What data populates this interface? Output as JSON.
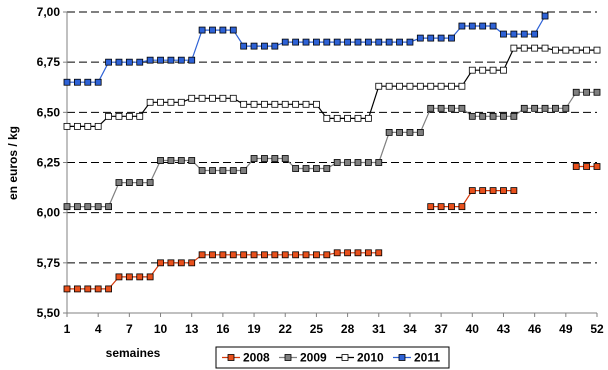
{
  "chart_data": {
    "type": "line",
    "title": "",
    "xlabel": "semaines",
    "ylabel": "en euros / kg",
    "xlim": [
      1,
      52
    ],
    "ylim": [
      5.5,
      7.0
    ],
    "x_ticks": [
      1,
      4,
      7,
      10,
      13,
      16,
      19,
      22,
      25,
      28,
      31,
      34,
      37,
      40,
      43,
      46,
      49,
      52
    ],
    "y_ticks": [
      "5,50",
      "5,75",
      "6,00",
      "6,25",
      "6,50",
      "6,75",
      "7,00"
    ],
    "y_tick_values": [
      5.5,
      5.75,
      6.0,
      6.25,
      6.5,
      6.75,
      7.0
    ],
    "grid": "horizontal dashed",
    "legend_position": "bottom",
    "series": [
      {
        "name": "2008",
        "color": "#e8501c",
        "line_color": "#d63a0c",
        "marker_fill": "#e8501c",
        "segments": [
          {
            "x": [
              1,
              2,
              3,
              4,
              5,
              6,
              7,
              8,
              9,
              10,
              11,
              12,
              13,
              14,
              15,
              16,
              17,
              18,
              19,
              20,
              21,
              22,
              23,
              24,
              25,
              26,
              27,
              28,
              29,
              30,
              31
            ],
            "y": [
              5.62,
              5.62,
              5.62,
              5.62,
              5.62,
              5.68,
              5.68,
              5.68,
              5.68,
              5.75,
              5.75,
              5.75,
              5.75,
              5.79,
              5.79,
              5.79,
              5.79,
              5.79,
              5.79,
              5.79,
              5.79,
              5.79,
              5.79,
              5.79,
              5.79,
              5.79,
              5.8,
              5.8,
              5.8,
              5.8,
              5.8
            ]
          },
          {
            "x": [
              36,
              37,
              38,
              39,
              40,
              41,
              42,
              43,
              44
            ],
            "y": [
              6.03,
              6.03,
              6.03,
              6.03,
              6.11,
              6.11,
              6.11,
              6.11,
              6.11
            ]
          },
          {
            "x": [
              50,
              51,
              52
            ],
            "y": [
              6.23,
              6.23,
              6.23
            ]
          }
        ]
      },
      {
        "name": "2009",
        "color": "#808080",
        "line_color": "#808080",
        "marker_fill": "#808080",
        "segments": [
          {
            "x": [
              1,
              2,
              3,
              4,
              5,
              6,
              7,
              8,
              9,
              10,
              11,
              12,
              13,
              14,
              15,
              16,
              17,
              18,
              19,
              20,
              21,
              22,
              23,
              24,
              25,
              26,
              27,
              28,
              29,
              30,
              31,
              32,
              33,
              34,
              35,
              36,
              37,
              38,
              39,
              40,
              41,
              42,
              43,
              44,
              45,
              46,
              47,
              48,
              49,
              50,
              51,
              52
            ],
            "y": [
              6.03,
              6.03,
              6.03,
              6.03,
              6.03,
              6.15,
              6.15,
              6.15,
              6.15,
              6.26,
              6.26,
              6.26,
              6.26,
              6.21,
              6.21,
              6.21,
              6.21,
              6.21,
              6.27,
              6.27,
              6.27,
              6.27,
              6.22,
              6.22,
              6.22,
              6.22,
              6.25,
              6.25,
              6.25,
              6.25,
              6.25,
              6.4,
              6.4,
              6.4,
              6.4,
              6.52,
              6.52,
              6.52,
              6.52,
              6.48,
              6.48,
              6.48,
              6.48,
              6.48,
              6.52,
              6.52,
              6.52,
              6.52,
              6.52,
              6.6,
              6.6,
              6.6
            ]
          }
        ]
      },
      {
        "name": "2010",
        "color": "#ffffff",
        "line_color": "#000000",
        "marker_fill": "#ffffff",
        "segments": [
          {
            "x": [
              1,
              2,
              3,
              4,
              5,
              6,
              7,
              8,
              9,
              10,
              11,
              12,
              13,
              14,
              15,
              16,
              17,
              18,
              19,
              20,
              21,
              22,
              23,
              24,
              25,
              26,
              27,
              28,
              29,
              30,
              31,
              32,
              33,
              34,
              35,
              36,
              37,
              38,
              39,
              40,
              41,
              42,
              43,
              44,
              45,
              46,
              47,
              48,
              49,
              50,
              51,
              52
            ],
            "y": [
              6.43,
              6.43,
              6.43,
              6.43,
              6.48,
              6.48,
              6.48,
              6.48,
              6.55,
              6.55,
              6.55,
              6.55,
              6.57,
              6.57,
              6.57,
              6.57,
              6.57,
              6.54,
              6.54,
              6.54,
              6.54,
              6.54,
              6.54,
              6.54,
              6.54,
              6.47,
              6.47,
              6.47,
              6.47,
              6.47,
              6.63,
              6.63,
              6.63,
              6.63,
              6.63,
              6.63,
              6.63,
              6.63,
              6.63,
              6.71,
              6.71,
              6.71,
              6.71,
              6.82,
              6.82,
              6.82,
              6.82,
              6.81,
              6.81,
              6.81,
              6.81,
              6.81
            ]
          }
        ]
      },
      {
        "name": "2011",
        "color": "#2e62d6",
        "line_color": "#2e62d6",
        "marker_fill": "#2e62d6",
        "segments": [
          {
            "x": [
              1,
              2,
              3,
              4,
              5,
              6,
              7,
              8,
              9,
              10,
              11,
              12,
              13,
              14,
              15,
              16,
              17,
              18,
              19,
              20,
              21,
              22,
              23,
              24,
              25,
              26,
              27,
              28,
              29,
              30,
              31,
              32,
              33,
              34,
              35,
              36,
              37,
              38,
              39,
              40,
              41,
              42,
              43,
              44,
              45,
              46,
              47
            ],
            "y": [
              6.65,
              6.65,
              6.65,
              6.65,
              6.75,
              6.75,
              6.75,
              6.75,
              6.76,
              6.76,
              6.76,
              6.76,
              6.76,
              6.91,
              6.91,
              6.91,
              6.91,
              6.83,
              6.83,
              6.83,
              6.83,
              6.85,
              6.85,
              6.85,
              6.85,
              6.85,
              6.85,
              6.85,
              6.85,
              6.85,
              6.85,
              6.85,
              6.85,
              6.85,
              6.87,
              6.87,
              6.87,
              6.87,
              6.93,
              6.93,
              6.93,
              6.93,
              6.89,
              6.89,
              6.89,
              6.89,
              6.98
            ]
          }
        ]
      }
    ]
  }
}
